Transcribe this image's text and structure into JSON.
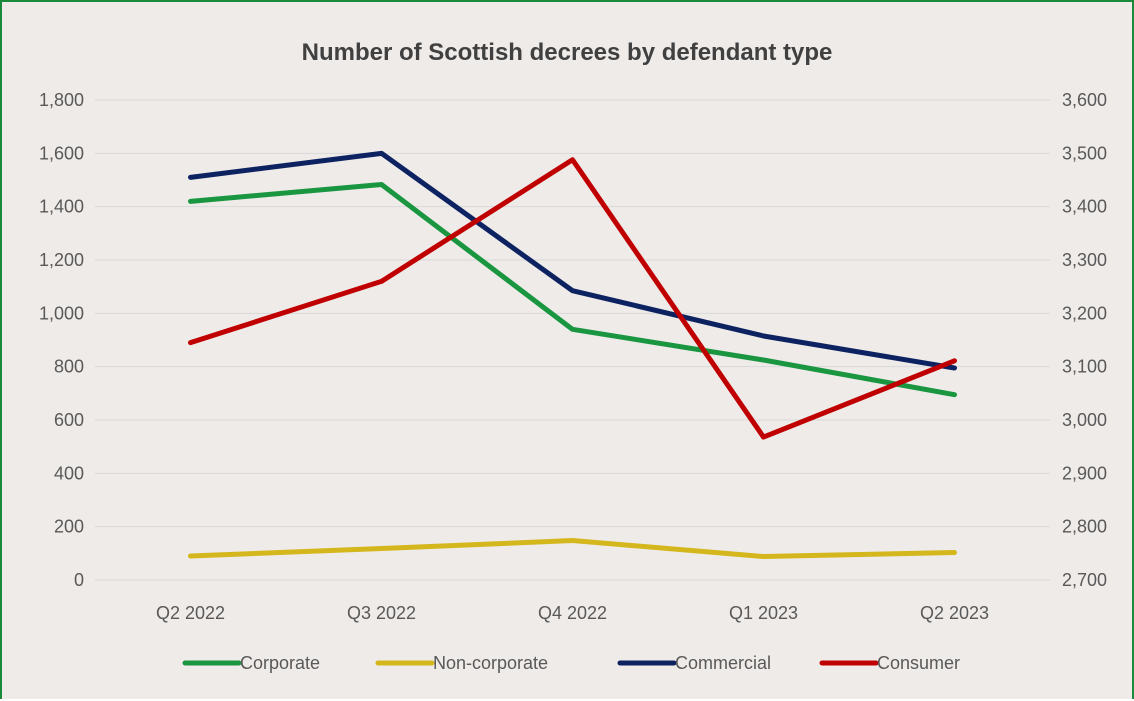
{
  "chart_data": {
    "type": "line",
    "title": "Number of Scottish decrees by defendant type",
    "categories": [
      "Q2 2022",
      "Q3 2022",
      "Q4 2022",
      "Q1 2023",
      "Q2 2023"
    ],
    "y_left": {
      "ylim": [
        0,
        1800
      ],
      "ticks": [
        "0",
        "200",
        "400",
        "600",
        "800",
        "1,000",
        "1,200",
        "1,400",
        "1,600",
        "1,800"
      ]
    },
    "y_right": {
      "ylim": [
        2700,
        3600
      ],
      "ticks": [
        "2,700",
        "2,800",
        "2,900",
        "3,000",
        "3,100",
        "3,200",
        "3,300",
        "3,400",
        "3,500",
        "3,600"
      ]
    },
    "grid": true,
    "legend_position": "bottom",
    "series": [
      {
        "name": "Corporate",
        "axis": "left",
        "color": "#1a9641",
        "values": [
          1420,
          1483,
          940,
          825,
          695
        ]
      },
      {
        "name": "Non-corporate",
        "axis": "left",
        "color": "#d4b71c",
        "values": [
          90,
          118,
          148,
          88,
          103
        ]
      },
      {
        "name": "Commercial",
        "axis": "left",
        "color": "#0d2260",
        "values": [
          1510,
          1600,
          1085,
          915,
          795
        ]
      },
      {
        "name": "Consumer",
        "axis": "right",
        "color": "#c00000",
        "values": [
          3145,
          3260,
          3488,
          2968,
          3111
        ]
      }
    ]
  }
}
